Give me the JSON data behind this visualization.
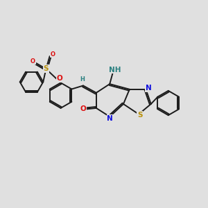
{
  "background_color": "#e0e0e0",
  "bond_color": "#1a1a1a",
  "bond_width": 1.4,
  "atom_colors": {
    "N": "#1010dd",
    "O": "#dd1010",
    "S": "#b8900a",
    "H_teal": "#2a8080",
    "C": "#1a1a1a"
  },
  "font_size_atom": 7.5,
  "font_size_small": 6.0
}
